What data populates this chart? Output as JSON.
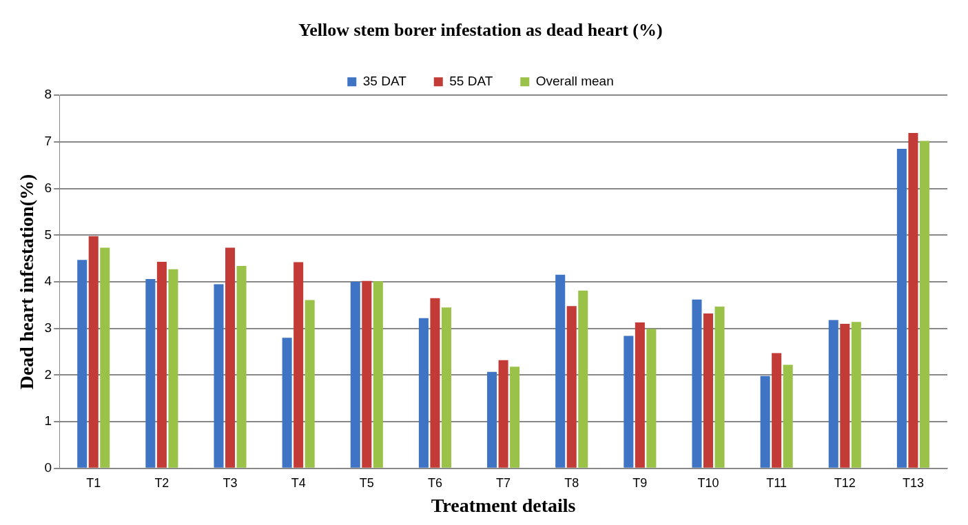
{
  "chart_data": {
    "type": "bar",
    "title": "Yellow stem borer infestation as dead heart (%)",
    "xlabel": "Treatment details",
    "ylabel": "Dead heart infestation(%)",
    "categories": [
      "T1",
      "T2",
      "T3",
      "T4",
      "T5",
      "T6",
      "T7",
      "T8",
      "T9",
      "T10",
      "T11",
      "T12",
      "T13"
    ],
    "series": [
      {
        "name": "35 DAT",
        "color": "#3f73c4",
        "values": [
          4.47,
          4.06,
          3.95,
          2.8,
          4.0,
          3.22,
          2.07,
          4.15,
          2.84,
          3.62,
          1.98,
          3.18,
          6.85
        ]
      },
      {
        "name": "55 DAT",
        "color": "#c23b36",
        "values": [
          4.98,
          4.43,
          4.73,
          4.42,
          4.02,
          3.65,
          2.32,
          3.48,
          3.13,
          3.32,
          2.47,
          3.1,
          7.19
        ]
      },
      {
        "name": "Overall mean",
        "color": "#9bc248",
        "values": [
          4.73,
          4.27,
          4.34,
          3.61,
          4.01,
          3.45,
          2.18,
          3.81,
          2.99,
          3.47,
          2.22,
          3.14,
          7.02
        ]
      }
    ],
    "ylim": [
      0,
      8
    ],
    "yticks": [
      0,
      1,
      2,
      3,
      4,
      5,
      6,
      7,
      8
    ],
    "grid": "y",
    "legend": "top"
  }
}
